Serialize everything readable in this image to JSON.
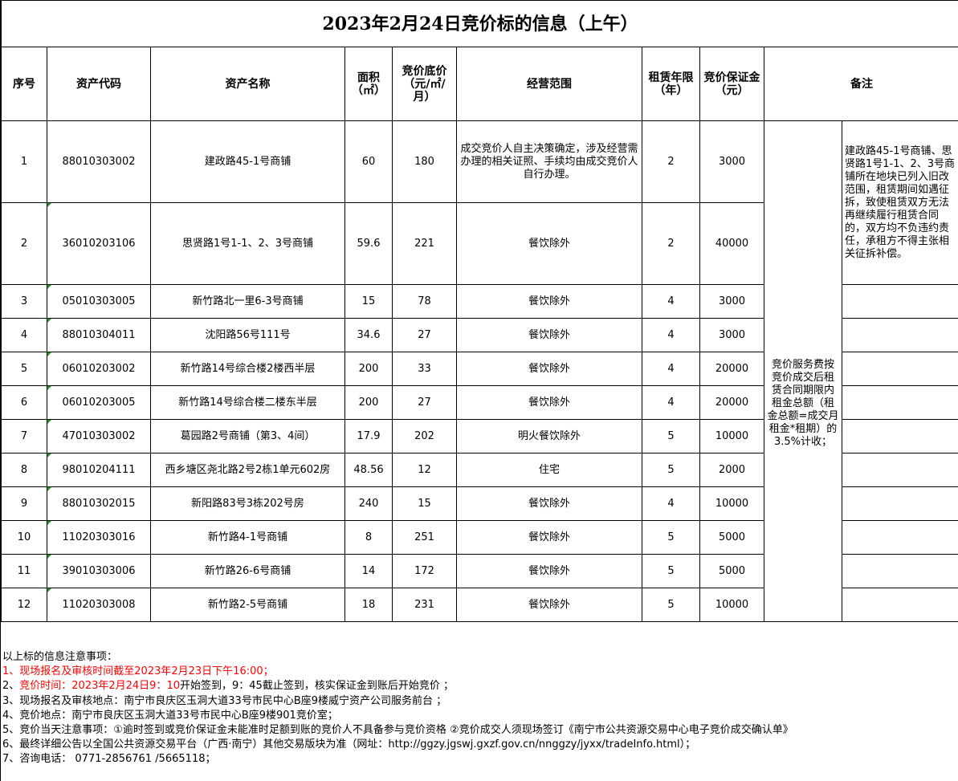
{
  "title": "2023年2月24日竞价标的信息（上午）",
  "headers": [
    "序号",
    "资产代码",
    "资产名称",
    "面积（㎡）",
    "竞价底价（元/㎡/月）",
    "经营范围",
    "租赁年限（年）",
    "竞价保证金（元）",
    "备注"
  ],
  "rows": [
    [
      "1",
      "88010303002",
      "建政路45-1号商铺",
      "60",
      "180",
      "成交竞价人自主决策确定，涉及经营需办理的相关证照、手续均由成交竞价人自行办理。",
      "2",
      "3000"
    ],
    [
      "2",
      "36010203106",
      "思贤路1号1-1、2、3号商铺",
      "59.6",
      "221",
      "餐饮除外",
      "2",
      "40000"
    ],
    [
      "3",
      "05010303005",
      "新竹路北一里6-3号商铺",
      "15",
      "78",
      "餐饮除外",
      "4",
      "3000"
    ],
    [
      "4",
      "88010304011",
      "沈阳路56号111号",
      "34.6",
      "27",
      "餐饮除外",
      "4",
      "3000"
    ],
    [
      "5",
      "06010203002",
      "新竹路14号综合楼2楼西半层",
      "200",
      "33",
      "餐饮除外",
      "4",
      "20000"
    ],
    [
      "6",
      "06010203005",
      "新竹路14号综合楼二楼东半层",
      "200",
      "27",
      "餐饮除外",
      "4",
      "20000"
    ],
    [
      "7",
      "47010303002",
      "葛园路2号商铺（第3、4间）",
      "17.9",
      "202",
      "明火餐饮除外",
      "5",
      "10000"
    ],
    [
      "8",
      "98010204111",
      "西乡塘区尧北路2号2栋1单元602房",
      "48.56",
      "12",
      "住宅",
      "5",
      "2000"
    ],
    [
      "9",
      "88010302015",
      "新阳路83号3栋202号房",
      "240",
      "15",
      "餐饮除外",
      "4",
      "10000"
    ],
    [
      "10",
      "11020303016",
      "新竹路4-1号商铺",
      "8",
      "251",
      "餐饮除外",
      "5",
      "5000"
    ],
    [
      "11",
      "39010303006",
      "新竹路26-6号商铺",
      "14",
      "172",
      "餐饮除外",
      "5",
      "5000"
    ],
    [
      "12",
      "11020303008",
      "新竹路2-5号商铺",
      "18",
      "231",
      "餐饮除外",
      "5",
      "10000"
    ]
  ],
  "service_fee_note": "竞价服务费按竞价成交后租赁合同期限内租金总额（租金总额=成交月租金*租期）的3.5%计收；",
  "remark_rows_1_2": "建政路45-1号商铺、思贤路1号1-1、2、3号商铺所在地块已列入旧改范围，租赁期间如遇征拆，致使租赁双方无法再继续履行租赁合同的，双方均不负违约责任，承租方不得主张相关征拆补偿。",
  "notes": {
    "heading": "以上标的信息注意事项：",
    "line1": "1、现场报名及审核时间截至2023年2月23日下午16:00；",
    "line2_prefix": "2、",
    "line2_red": "竞价时间：2023年2月24日9：10",
    "line2_rest": "开始签到，9：45截止签到，核实保证金到账后开始竞价 ；",
    "line3": "3、现场报名及审核地点：南宁市良庆区玉洞大道33号市民中心B座9楼威宁资产公司服务前台 ；",
    "line4": "4、竞价地点：南宁市良庆区玉洞大道33号市民中心B座9楼901竞价室；",
    "line5": "5、竞价当天注意事项：①逾时签到或竞价保证金未能准时足额到账的竞价人不具备参与竞价资格 ②竞价成交人须现场签订《南宁市公共资源交易中心电子竞价成交确认单》",
    "line6": "6、最终详细公告以全国公共资源交易平台（广西·南宁）其他交易版块为准（网址：http://ggzy.jgswj.gxzf.gov.cn/nnggzy/jyxx/tradeInfo.html）；",
    "line7": "7、咨询电话： 0771-2856761 /5665118；"
  },
  "colors": {
    "alert": "#ff0000",
    "cell_marker": "#1a9a1a"
  }
}
